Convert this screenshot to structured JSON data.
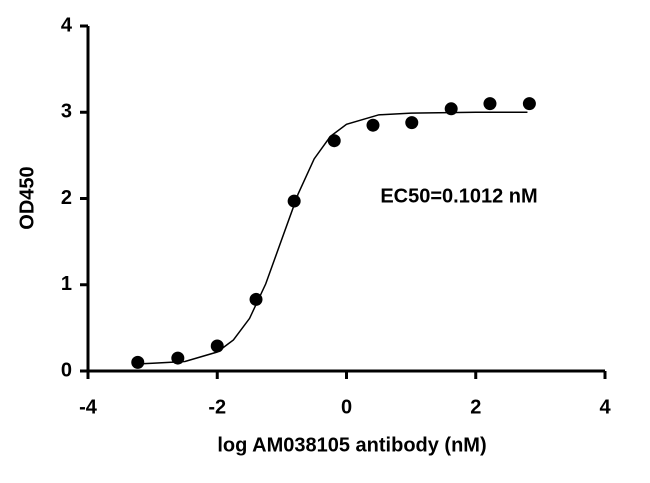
{
  "chart_data": {
    "type": "scatter",
    "x": [
      -3.23,
      -2.61,
      -2.0,
      -1.4,
      -0.81,
      -0.19,
      0.41,
      1.01,
      1.62,
      2.22,
      2.83
    ],
    "values": [
      0.1,
      0.15,
      0.29,
      0.83,
      1.97,
      2.67,
      2.85,
      2.88,
      3.04,
      3.1,
      3.1
    ],
    "color": "#000000",
    "curve": {
      "x": [
        -3.3,
        -3.0,
        -2.5,
        -2.0,
        -1.75,
        -1.5,
        -1.25,
        -1.0,
        -0.75,
        -0.5,
        -0.25,
        0,
        0.5,
        1.0,
        2.0,
        2.8
      ],
      "values": [
        0.08,
        0.09,
        0.11,
        0.22,
        0.36,
        0.61,
        1.01,
        1.53,
        2.05,
        2.46,
        2.72,
        2.86,
        2.97,
        2.99,
        3.0,
        3.0
      ]
    },
    "annotation": "EC50=0.1012 nM",
    "xlabel": "log AM038105 antibody (nM)",
    "ylabel": "OD450",
    "xlim": [
      -4,
      4
    ],
    "xticks": [
      -4,
      -2,
      0,
      2,
      4
    ],
    "ylim": [
      0,
      4
    ],
    "yticks": [
      0,
      1,
      2,
      3,
      4
    ]
  }
}
